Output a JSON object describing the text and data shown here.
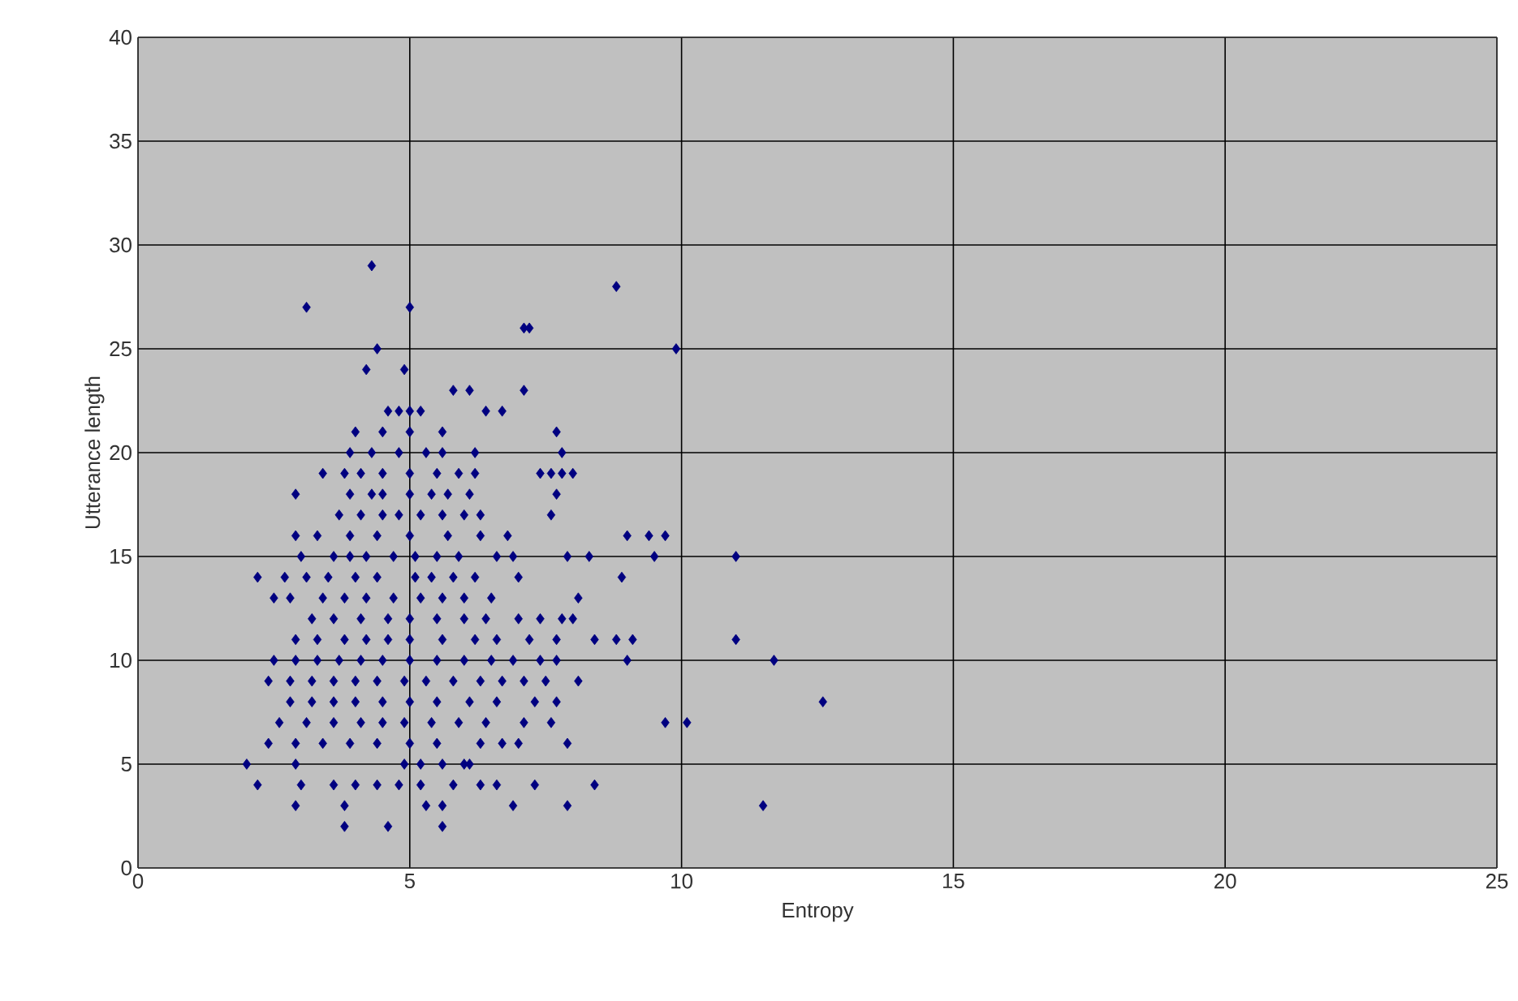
{
  "chart_data": {
    "type": "scatter",
    "xlabel": "Entropy",
    "ylabel": "Utterance length",
    "xlim": [
      0,
      25
    ],
    "ylim": [
      0,
      40
    ],
    "xticks": [
      0,
      5,
      10,
      15,
      20,
      25
    ],
    "yticks": [
      0,
      5,
      10,
      15,
      20,
      25,
      30,
      35,
      40
    ],
    "grid": true,
    "marker": "diamond",
    "series": [
      {
        "color": "#000080",
        "x": [
          4.3,
          8.8,
          3.1,
          5.0,
          7.1,
          7.2,
          4.4,
          9.9,
          4.2,
          4.9,
          5.8,
          6.1,
          7.1,
          4.6,
          4.8,
          5.0,
          5.2,
          6.4,
          6.7,
          4.0,
          4.5,
          5.0,
          5.6,
          7.7,
          3.9,
          4.3,
          4.8,
          5.3,
          5.6,
          6.2,
          7.8,
          3.4,
          3.8,
          4.1,
          4.5,
          5.0,
          5.5,
          5.9,
          6.2,
          7.4,
          7.6,
          7.8,
          8.0,
          2.9,
          3.9,
          4.3,
          4.5,
          5.0,
          5.4,
          5.7,
          6.1,
          7.7,
          3.7,
          4.1,
          4.5,
          4.8,
          5.2,
          5.6,
          6.0,
          6.3,
          7.6,
          2.9,
          3.3,
          3.9,
          4.4,
          5.0,
          5.7,
          6.3,
          6.8,
          9.0,
          9.4,
          9.7,
          3.0,
          3.6,
          3.9,
          4.2,
          4.7,
          5.1,
          5.5,
          5.9,
          6.6,
          6.9,
          7.9,
          8.3,
          9.5,
          11.0,
          2.2,
          2.7,
          3.1,
          3.5,
          4.0,
          4.4,
          5.1,
          5.4,
          5.8,
          6.2,
          7.0,
          8.9,
          2.5,
          2.8,
          3.4,
          3.8,
          4.2,
          4.7,
          5.2,
          5.6,
          6.0,
          6.5,
          8.1,
          3.2,
          3.6,
          4.1,
          4.6,
          5.0,
          5.5,
          6.0,
          6.4,
          7.0,
          7.4,
          7.8,
          8.0,
          2.9,
          3.3,
          3.8,
          4.2,
          4.6,
          5.0,
          5.6,
          6.2,
          6.6,
          7.2,
          7.7,
          8.4,
          8.8,
          9.1,
          11.0,
          2.5,
          2.9,
          3.3,
          3.7,
          4.1,
          4.5,
          5.0,
          5.5,
          6.0,
          6.5,
          6.9,
          7.4,
          7.7,
          9.0,
          11.7,
          2.4,
          2.8,
          3.2,
          3.6,
          4.0,
          4.4,
          4.9,
          5.3,
          5.8,
          6.3,
          6.7,
          7.1,
          7.5,
          8.1,
          2.8,
          3.2,
          3.6,
          4.0,
          4.5,
          5.0,
          5.5,
          6.1,
          6.6,
          7.3,
          7.7,
          12.6,
          2.6,
          3.1,
          3.6,
          4.1,
          4.5,
          4.9,
          5.4,
          5.9,
          6.4,
          7.1,
          7.6,
          9.7,
          10.1,
          2.4,
          2.9,
          3.4,
          3.9,
          4.4,
          5.0,
          5.5,
          6.3,
          6.7,
          7.0,
          7.9,
          2.0,
          2.9,
          4.9,
          5.2,
          5.6,
          6.0,
          6.1,
          2.2,
          3.0,
          3.6,
          4.0,
          4.4,
          4.8,
          5.2,
          5.8,
          6.3,
          6.6,
          7.3,
          8.4,
          2.9,
          3.8,
          5.3,
          5.6,
          6.9,
          7.9,
          11.5,
          3.8,
          4.6,
          5.6
        ],
        "values": [
          29,
          28,
          27,
          27,
          26,
          26,
          25,
          25,
          24,
          24,
          23,
          23,
          23,
          22,
          22,
          22,
          22,
          22,
          22,
          21,
          21,
          21,
          21,
          21,
          20,
          20,
          20,
          20,
          20,
          20,
          20,
          19,
          19,
          19,
          19,
          19,
          19,
          19,
          19,
          19,
          19,
          19,
          19,
          18,
          18,
          18,
          18,
          18,
          18,
          18,
          18,
          18,
          17,
          17,
          17,
          17,
          17,
          17,
          17,
          17,
          17,
          16,
          16,
          16,
          16,
          16,
          16,
          16,
          16,
          16,
          16,
          16,
          15,
          15,
          15,
          15,
          15,
          15,
          15,
          15,
          15,
          15,
          15,
          15,
          15,
          15,
          14,
          14,
          14,
          14,
          14,
          14,
          14,
          14,
          14,
          14,
          14,
          14,
          13,
          13,
          13,
          13,
          13,
          13,
          13,
          13,
          13,
          13,
          13,
          12,
          12,
          12,
          12,
          12,
          12,
          12,
          12,
          12,
          12,
          12,
          12,
          11,
          11,
          11,
          11,
          11,
          11,
          11,
          11,
          11,
          11,
          11,
          11,
          11,
          11,
          11,
          10,
          10,
          10,
          10,
          10,
          10,
          10,
          10,
          10,
          10,
          10,
          10,
          10,
          10,
          10,
          9,
          9,
          9,
          9,
          9,
          9,
          9,
          9,
          9,
          9,
          9,
          9,
          9,
          9,
          8,
          8,
          8,
          8,
          8,
          8,
          8,
          8,
          8,
          8,
          8,
          8,
          7,
          7,
          7,
          7,
          7,
          7,
          7,
          7,
          7,
          7,
          7,
          7,
          7,
          6,
          6,
          6,
          6,
          6,
          6,
          6,
          6,
          6,
          6,
          6,
          5,
          5,
          5,
          5,
          5,
          5,
          5,
          4,
          4,
          4,
          4,
          4,
          4,
          4,
          4,
          4,
          4,
          4,
          4,
          3,
          3,
          3,
          3,
          3,
          3,
          3,
          2,
          2,
          2
        ]
      }
    ]
  }
}
